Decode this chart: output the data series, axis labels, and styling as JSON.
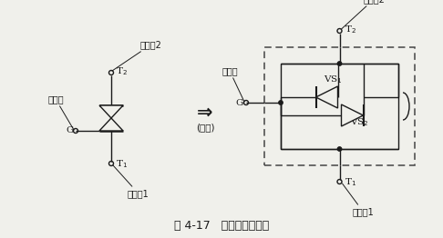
{
  "bg_color": "#f0f0eb",
  "line_color": "#1a1a1a",
  "dashed_color": "#444444",
  "title_text": "图 4-17   双向晶闸管原理",
  "title_fontsize": 9,
  "small_fontsize": 7.5,
  "symbol_fontsize": 7,
  "arrow_text": "⇒",
  "arrow_sub": "(等效)",
  "T2_label": "T$_2$",
  "T1_label": "T$_1$",
  "G_label": "G",
  "main2": "主电杗2",
  "main1": "主电杗1",
  "ctrl": "控制极",
  "VS1": "VS$_1$",
  "VS2": "VS$_2$"
}
